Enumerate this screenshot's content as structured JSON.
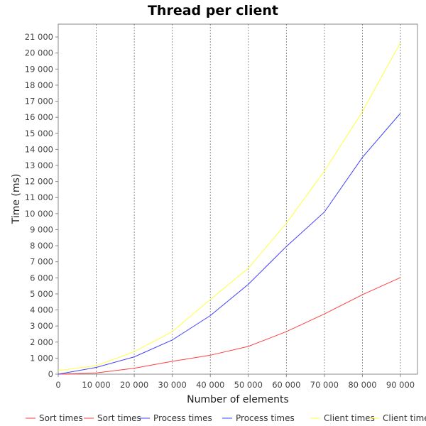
{
  "chart_data": {
    "type": "line",
    "title": "Thread per client",
    "xlabel": "Number of elements",
    "ylabel": "Time (ms)",
    "xlim": [
      0,
      90000
    ],
    "ylim": [
      0,
      21800
    ],
    "x_ticks": [
      "0",
      "10 000",
      "20 000",
      "30 000",
      "40 000",
      "50 000",
      "60 000",
      "70 000",
      "80 000",
      "90 000"
    ],
    "y_ticks": [
      "0",
      "1 000",
      "2 000",
      "3 000",
      "4 000",
      "5 000",
      "6 000",
      "7 000",
      "8 000",
      "9 000",
      "10 000",
      "11 000",
      "12 000",
      "13 000",
      "14 000",
      "15 000",
      "16 000",
      "17 000",
      "18 000",
      "19 000",
      "20 000",
      "21 000"
    ],
    "grid": "vertical-dashed",
    "legend_position": "bottom",
    "x": [
      0,
      10000,
      20000,
      30000,
      40000,
      50000,
      60000,
      70000,
      80000,
      90000
    ],
    "series": [
      {
        "name": "Sort times",
        "color": "#ff4040",
        "values": [
          0,
          80,
          370,
          800,
          1180,
          1730,
          2650,
          3750,
          4950,
          6020
        ]
      },
      {
        "name": "Process times",
        "color": "#4040ff",
        "values": [
          0,
          420,
          1080,
          2130,
          3650,
          5600,
          7950,
          10100,
          13500,
          16250
        ]
      },
      {
        "name": "Client times",
        "color": "#ffff40",
        "values": [
          220,
          530,
          1400,
          2650,
          4650,
          6600,
          9400,
          12650,
          16350,
          20650
        ]
      }
    ],
    "legend": [
      {
        "label": "Sort times",
        "color": "#ff4040"
      },
      {
        "label": "Sort times",
        "color": "#ff4040"
      },
      {
        "label": "Process times",
        "color": "#4040ff"
      },
      {
        "label": "Process times",
        "color": "#4040ff"
      },
      {
        "label": "Client times",
        "color": "#ffff40"
      },
      {
        "label": "Client times",
        "color": "#ffff40"
      }
    ]
  }
}
